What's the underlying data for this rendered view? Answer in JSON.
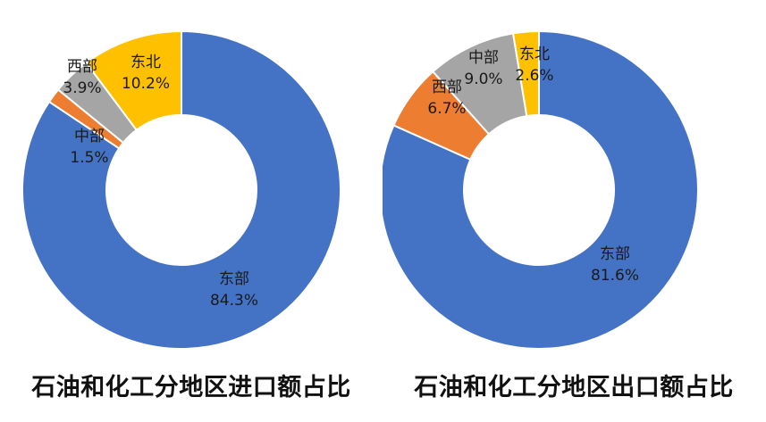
{
  "chart_data": [
    {
      "type": "pie",
      "title": "石油和化工分地区进口额占比",
      "categories": [
        "东部",
        "中部",
        "西部",
        "东北"
      ],
      "values": [
        84.3,
        1.5,
        3.9,
        10.2
      ],
      "value_labels": [
        "84.3%",
        "1.5%",
        "3.9%",
        "10.2%"
      ],
      "colors": [
        "#4472C4",
        "#ED7D31",
        "#A5A5A5",
        "#FFC000"
      ],
      "donut": true,
      "legend": "none"
    },
    {
      "type": "pie",
      "title": "石油和化工分地区出口额占比",
      "categories": [
        "东部",
        "西部",
        "中部",
        "东北"
      ],
      "values": [
        81.6,
        6.7,
        9.0,
        2.6
      ],
      "value_labels": [
        "81.6%",
        "6.7%",
        "9.0%",
        "2.6%"
      ],
      "colors": [
        "#4472C4",
        "#ED7D31",
        "#A5A5A5",
        "#FFC000"
      ],
      "donut": true,
      "legend": "none"
    }
  ]
}
